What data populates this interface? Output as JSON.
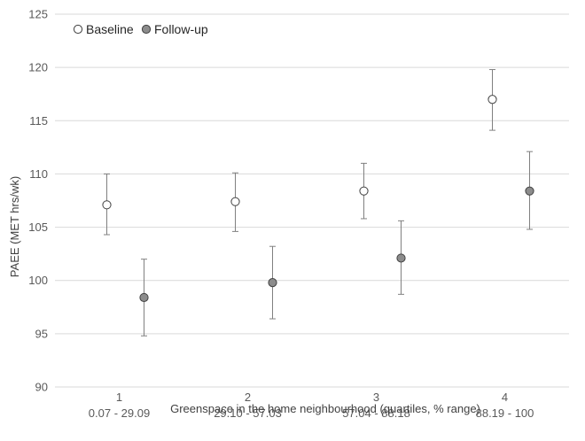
{
  "chart_data": {
    "type": "scatter",
    "title": "",
    "xlabel": "Greenspace in the home neighbourhood (quartiles, % range)",
    "ylabel": "PAEE (MET hrs/wk)",
    "ylim": [
      90,
      125
    ],
    "yticks": [
      "90",
      "95",
      "100",
      "105",
      "110",
      "115",
      "120",
      "125"
    ],
    "grid": "horizontal",
    "legend_position": "top-left",
    "categories": [
      {
        "quartile": "1",
        "range": "0.07 - 29.09"
      },
      {
        "quartile": "2",
        "range": "29.10 - 57.03"
      },
      {
        "quartile": "3",
        "range": "57.04 - 88.18"
      },
      {
        "quartile": "4",
        "range": "88.19 - 100"
      }
    ],
    "series": [
      {
        "name": "Baseline",
        "marker_fill": "#ffffff",
        "values": [
          107.1,
          107.4,
          108.4,
          117.0
        ],
        "error_low": [
          104.3,
          104.6,
          105.8,
          114.1
        ],
        "error_high": [
          110.0,
          110.1,
          111.0,
          119.8
        ]
      },
      {
        "name": "Follow-up",
        "marker_fill": "#8c8c8c",
        "values": [
          98.4,
          99.8,
          102.1,
          108.4
        ],
        "error_low": [
          94.8,
          96.4,
          98.7,
          104.8
        ],
        "error_high": [
          102.0,
          103.2,
          105.6,
          112.1
        ]
      }
    ]
  },
  "colors": {
    "gridline": "#d9d9d9",
    "errorbar": "#808080",
    "marker_stroke": "#404040"
  }
}
